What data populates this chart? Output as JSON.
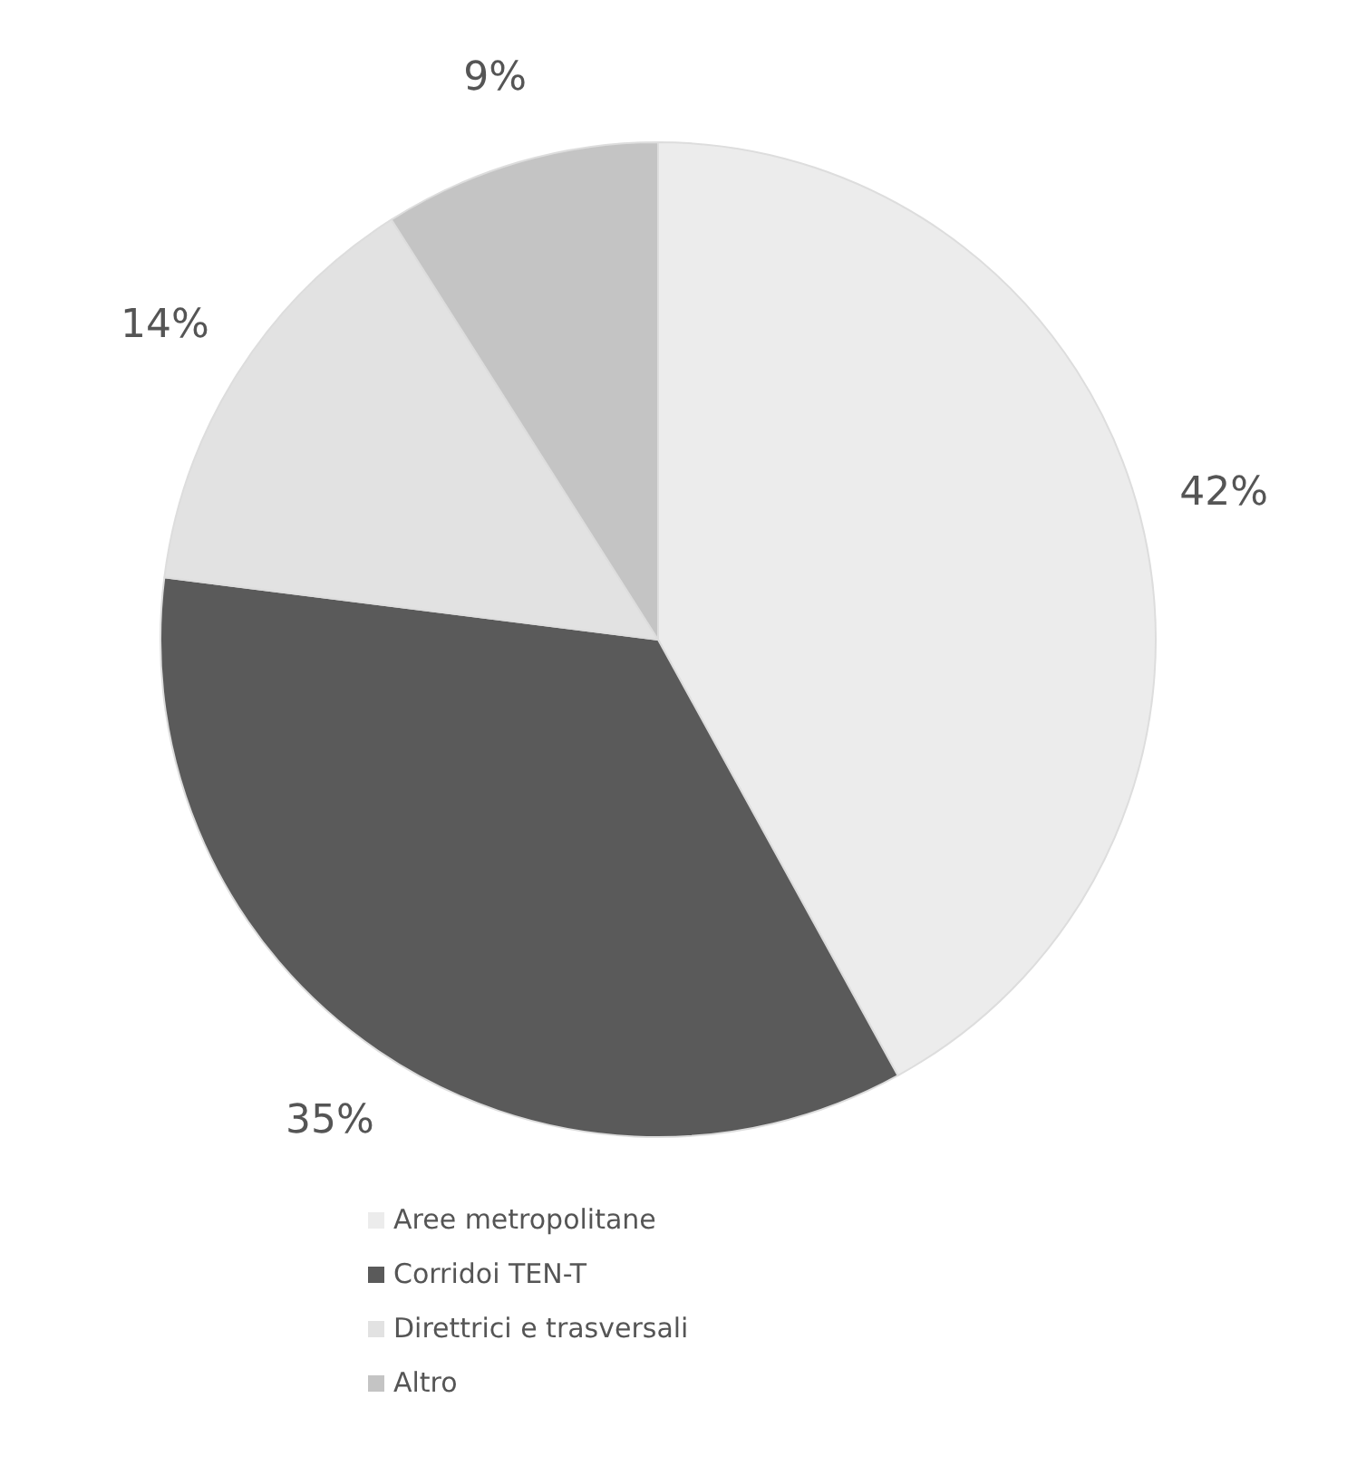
{
  "chart_data": {
    "type": "pie",
    "categories": [
      "Aree metropolitane",
      "Corridoi TEN-T",
      "Direttrici e trasversali",
      "Altro"
    ],
    "values": [
      42,
      35,
      14,
      9
    ],
    "colors": [
      "#ececec",
      "#5a5a5a",
      "#e2e2e2",
      "#c4c4c4"
    ],
    "value_labels": [
      "42%",
      "35%",
      "14%",
      "9%"
    ],
    "legend": "bottom"
  }
}
